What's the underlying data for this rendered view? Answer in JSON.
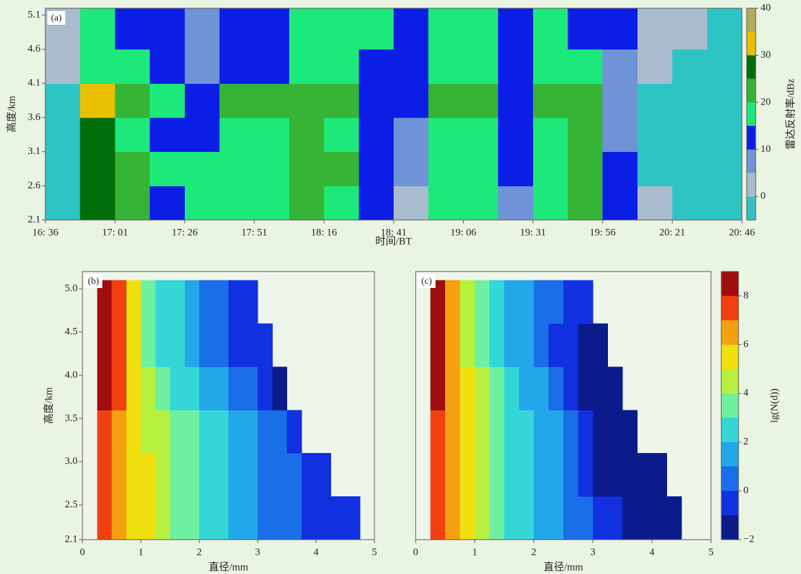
{
  "chart_data": [
    {
      "type": "heatmap",
      "label": "(a)",
      "xlabel": "时间/BT",
      "ylabel": "高度/km",
      "xlim": [
        996,
        1246
      ],
      "ylim": [
        2.1,
        5.2
      ],
      "xticks": [
        {
          "value": 996,
          "label": "16: 36"
        },
        {
          "value": 1021,
          "label": "17: 01"
        },
        {
          "value": 1046,
          "label": "17: 26"
        },
        {
          "value": 1071,
          "label": "17: 51"
        },
        {
          "value": 1096,
          "label": "18: 16"
        },
        {
          "value": 1121,
          "label": "18: 41"
        },
        {
          "value": 1146,
          "label": "19: 06"
        },
        {
          "value": 1171,
          "label": "19: 31"
        },
        {
          "value": 1196,
          "label": "19: 56"
        },
        {
          "value": 1221,
          "label": "20: 21"
        },
        {
          "value": 1246,
          "label": "20: 46"
        }
      ],
      "yticks": [
        2.1,
        2.6,
        3.1,
        3.6,
        4.1,
        4.6,
        5.1
      ],
      "xbins": [
        996,
        1008.5,
        1021,
        1033.5,
        1046,
        1058.5,
        1071,
        1083.5,
        1096,
        1108.5,
        1121,
        1133.5,
        1146,
        1158.5,
        1171,
        1183.5,
        1196,
        1208.5,
        1221,
        1233.5,
        1246
      ],
      "ybins": [
        2.1,
        2.6,
        3.1,
        3.6,
        4.1,
        4.6,
        5.2
      ],
      "values": [
        [
          -2,
          27,
          22,
          12,
          17,
          17,
          18,
          24,
          18,
          14,
          3,
          18,
          17,
          8,
          17,
          22,
          12,
          0,
          -3,
          -3
        ],
        [
          -3,
          27,
          20,
          15,
          17,
          18,
          17,
          24,
          20,
          12,
          5,
          17,
          16,
          12,
          16,
          21,
          10,
          -1,
          -3,
          -3
        ],
        [
          -2,
          28,
          19,
          14,
          12,
          18,
          18,
          23,
          19,
          13,
          6,
          17,
          17,
          12,
          15,
          20,
          8,
          -2,
          -3,
          -3
        ],
        [
          -2,
          31,
          22,
          18,
          14,
          22,
          21,
          24,
          20,
          14,
          10,
          21,
          23,
          14,
          20,
          22,
          7,
          -1,
          -3,
          -3
        ],
        [
          0,
          18,
          17,
          12,
          8,
          13,
          10,
          18,
          17,
          12,
          10,
          17,
          18,
          12,
          16,
          16,
          5,
          0,
          -2,
          -2
        ],
        [
          2,
          18,
          14,
          10,
          5,
          10,
          12,
          17,
          16,
          17,
          11,
          18,
          17,
          12,
          16,
          14,
          10,
          2,
          0,
          -2
        ]
      ],
      "colorbar": {
        "label": "雷达反射率/dBz",
        "ylim": [
          -5,
          40
        ],
        "yticks": [
          0,
          10,
          20,
          30,
          40
        ],
        "levels": [
          -5,
          0,
          5,
          10,
          15,
          20,
          25,
          30,
          35,
          40
        ],
        "colors": [
          "#2ec4c4",
          "#a9bccf",
          "#6f93d6",
          "#0a1ee6",
          "#1de87a",
          "#36b436",
          "#006e0a",
          "#e8c000",
          "#b3ad5a"
        ]
      }
    },
    {
      "type": "heatmap",
      "label": "(b)",
      "xlabel": "直径/mm",
      "ylabel": "高度/km",
      "xlim": [
        0,
        5
      ],
      "ylim": [
        2.1,
        5.2
      ],
      "xticks": [
        0,
        1,
        2,
        3,
        4,
        5
      ],
      "yticks": [
        2.1,
        2.5,
        {
          "value": 3,
          "label": "3.0"
        },
        3.5,
        {
          "value": 4,
          "label": "4.0"
        },
        4.5,
        {
          "value": 5,
          "label": "5.0"
        }
      ],
      "xbins": [
        0.25,
        0.5,
        0.75,
        1,
        1.25,
        1.5,
        1.75,
        2,
        2.25,
        2.5,
        2.75,
        3,
        3.25,
        3.5,
        3.75,
        4,
        4.25,
        4.5,
        4.75
      ],
      "ybins": [
        2.1,
        2.6,
        3.1,
        3.6,
        4.1,
        4.6,
        5.1
      ],
      "values": [
        [
          7,
          6,
          5,
          5,
          4,
          3.5,
          3,
          2.5,
          2,
          1.5,
          1,
          0.5,
          0,
          0,
          -0.5,
          -0.5,
          -1,
          -1
        ],
        [
          7,
          6,
          5,
          5,
          4,
          3.5,
          3,
          2.5,
          2,
          1.5,
          1,
          0.5,
          0,
          0,
          -0.5,
          -0.5,
          null,
          null
        ],
        [
          7.5,
          6,
          5.5,
          4.5,
          4,
          3.5,
          3,
          2.5,
          2,
          1.5,
          1,
          0.5,
          0,
          -0.5,
          null,
          null,
          null,
          null
        ],
        [
          8.5,
          7,
          5,
          4,
          3.5,
          2.5,
          2,
          1.5,
          1,
          0.5,
          0,
          -0.5,
          -1.5,
          null,
          null,
          null,
          null,
          null
        ],
        [
          8.5,
          7,
          5,
          3.5,
          2.5,
          2,
          1.5,
          0.5,
          0,
          -0.5,
          -0.5,
          -0.5,
          null,
          null,
          null,
          null,
          null,
          null
        ],
        [
          8.5,
          7,
          5,
          3.5,
          2.5,
          2,
          1.5,
          0.5,
          0,
          -0.5,
          -0.5,
          null,
          null,
          null,
          null,
          null,
          null,
          null
        ]
      ]
    },
    {
      "type": "heatmap",
      "label": "(c)",
      "xlabel": "直径/mm",
      "xlim": [
        0,
        5
      ],
      "ylim": [
        2.1,
        5.2
      ],
      "xticks": [
        0,
        1,
        2,
        3,
        4,
        5
      ],
      "xbins": [
        0.25,
        0.5,
        0.75,
        1,
        1.25,
        1.5,
        1.75,
        2,
        2.25,
        2.5,
        2.75,
        3,
        3.25,
        3.5,
        3.75,
        4,
        4.25,
        4.5,
        4.75
      ],
      "ybins": [
        2.1,
        2.6,
        3.1,
        3.6,
        4.1,
        4.6,
        5.1
      ],
      "values": [
        [
          7,
          6,
          5,
          4,
          3.5,
          2.5,
          2,
          1.5,
          1,
          0.5,
          0,
          -0.5,
          -1,
          -1.5,
          -1.5,
          -1.5,
          -1.5,
          null
        ],
        [
          7,
          6,
          5,
          4,
          3.5,
          2.5,
          2,
          1.5,
          1,
          0.5,
          -0.5,
          -1.5,
          -1.5,
          -1.5,
          -1.5,
          -1.5,
          null,
          null
        ],
        [
          7.5,
          6,
          5,
          4,
          3.5,
          2.5,
          2,
          1.5,
          1,
          0,
          -0.5,
          -1.5,
          -1.5,
          -1.5,
          null,
          null,
          null,
          null
        ],
        [
          8.5,
          6.5,
          5,
          4,
          3,
          2.5,
          1.5,
          1,
          0,
          -0.5,
          -1.5,
          -1.5,
          -1.5,
          null,
          null,
          null,
          null,
          null
        ],
        [
          8.5,
          6.5,
          4.5,
          3.5,
          2.5,
          1.5,
          1,
          0.5,
          -0.5,
          -1,
          -1.5,
          -1.5,
          null,
          null,
          null,
          null,
          null,
          null
        ],
        [
          8.5,
          6.5,
          4.5,
          3.5,
          2.5,
          1.5,
          1,
          0.5,
          0,
          -0.5,
          -1,
          null,
          null,
          null,
          null,
          null,
          null,
          null
        ]
      ],
      "colorbar": {
        "label": "lg(N(d))",
        "ylim": [
          -2,
          9
        ],
        "yticks": [
          {
            "value": -2,
            "label": "−2"
          },
          0,
          2,
          4,
          6,
          8
        ],
        "levels": [
          -2,
          -1,
          0,
          1,
          2,
          3,
          4,
          5,
          6,
          7,
          8,
          9
        ],
        "colors": [
          "#0b1b8c",
          "#1130e0",
          "#1a6ee8",
          "#22a8e8",
          "#35d6d6",
          "#6ef0a0",
          "#b8f040",
          "#f0e010",
          "#f5a010",
          "#f04010",
          "#a00d0d"
        ]
      }
    }
  ]
}
